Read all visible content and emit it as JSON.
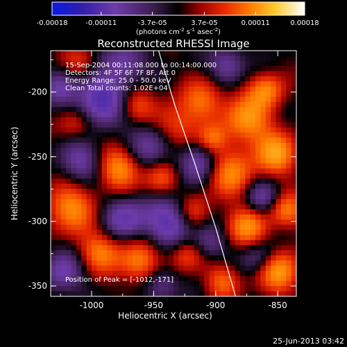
{
  "colorbar": {
    "tick_values": [
      -0.00018,
      -0.00011,
      -3.7e-05,
      3.7e-05,
      0.00011,
      0.00018
    ],
    "tick_labels": [
      "-0.00018",
      "-0.00011",
      "-3.7e-05",
      "3.7e-05",
      "0.00011",
      "0.00018"
    ],
    "unit_parts": [
      "(photons cm",
      "-2",
      " s",
      "-1",
      " asec",
      "-2",
      ")"
    ],
    "colormap": "blue-purple-black-red-yellow-white",
    "range": [
      -0.00018,
      0.00018
    ]
  },
  "chart_data": {
    "type": "heatmap",
    "title": "Reconstructed RHESSI Image",
    "xlabel": "Heliocentric X (arcsec)",
    "ylabel": "Heliocentric Y (arcsec)",
    "xlim": [
      -1033,
      -835
    ],
    "ylim": [
      -358,
      -168
    ],
    "x_ticks": [
      -1000,
      -950,
      -900,
      -850
    ],
    "x_tick_labels": [
      "-1000",
      "-950",
      "-900",
      "-850"
    ],
    "y_ticks": [
      -200,
      -250,
      -300,
      -350
    ],
    "y_tick_labels": [
      "-200",
      "-250",
      "-300",
      "-350"
    ],
    "annotations": [
      "15-Sep-2004 00:11:08.000 to 00:14:00.000",
      "Detectors: 4F 5F 6F 7F 8F, Att 0",
      "Energy Range: 25.0 - 50.0 keV",
      "Clean    Total counts: 1.02E+04"
    ],
    "peak_label": "Position of Peak = [-1012,-171]",
    "peak_position": [
      -1012,
      -171
    ],
    "limb_line": {
      "points": [
        [
          -946,
          -168
        ],
        [
          -933,
          -210
        ],
        [
          -917,
          -255
        ],
        [
          -900,
          -305
        ],
        [
          -884,
          -358
        ]
      ],
      "color": "#ffffff"
    },
    "grid": false,
    "legend": "none"
  },
  "footer": {
    "timestamp": "25-Jun-2013 03:42"
  }
}
